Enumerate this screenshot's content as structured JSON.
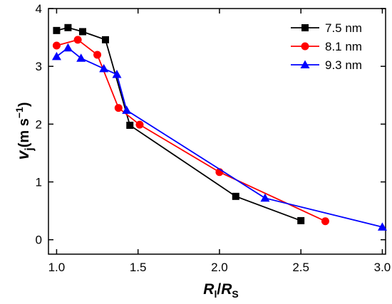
{
  "chart_data": {
    "type": "line",
    "xlim": [
      0.95,
      3.02
    ],
    "ylim": [
      -0.25,
      4.0
    ],
    "xticks": [
      "1.0",
      "1.5",
      "2.0",
      "2.5",
      "3.0"
    ],
    "yticks": [
      "0",
      "1",
      "2",
      "3",
      "4"
    ],
    "xlabel": {
      "main": "R",
      "sub1": "l",
      "slash": "/",
      "main2": "R",
      "sub2": "S"
    },
    "ylabel": {
      "main": "v",
      "sub": "j",
      "units": "(m s",
      "exp": "−1",
      "close": ")"
    },
    "grid": false,
    "legend_position": "top-right",
    "series": [
      {
        "name": "7.5 nm",
        "color": "#000000",
        "marker": "square",
        "x": [
          1.0,
          1.07,
          1.16,
          1.3,
          1.45,
          2.1,
          2.5
        ],
        "y": [
          3.62,
          3.67,
          3.6,
          3.46,
          1.98,
          0.75,
          0.33
        ]
      },
      {
        "name": "8.1 nm",
        "color": "#ff0000",
        "marker": "circle",
        "x": [
          1.0,
          1.13,
          1.25,
          1.38,
          1.51,
          2.0,
          2.65
        ],
        "y": [
          3.36,
          3.46,
          3.2,
          2.28,
          1.99,
          1.17,
          0.32
        ]
      },
      {
        "name": "9.3 nm",
        "color": "#0000ff",
        "marker": "triangle",
        "x": [
          1.0,
          1.07,
          1.15,
          1.29,
          1.37,
          1.43,
          2.28,
          3.0
        ],
        "y": [
          3.17,
          3.32,
          3.14,
          2.96,
          2.86,
          2.24,
          0.72,
          0.22
        ]
      }
    ]
  }
}
